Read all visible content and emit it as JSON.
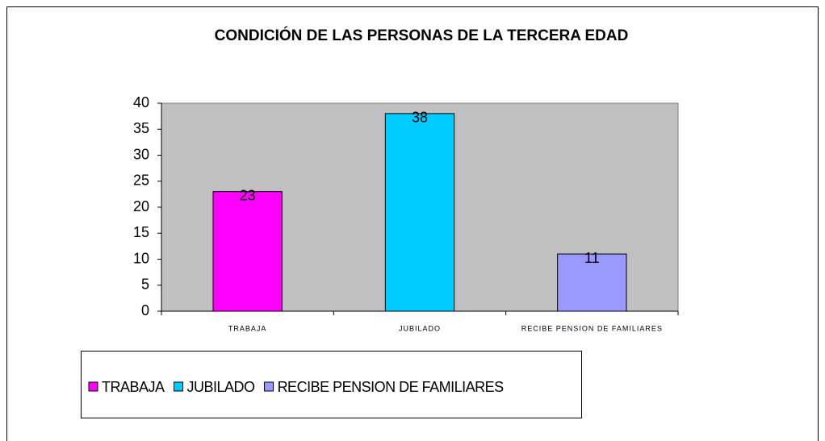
{
  "chart_data": {
    "type": "bar",
    "title": "CONDICIÓN DE LAS PERSONAS DE LA TERCERA EDAD",
    "categories": [
      "TRABAJA",
      "JUBILADO",
      "RECIBE PENSION DE FAMILIARES"
    ],
    "values": [
      23,
      38,
      11
    ],
    "colors": [
      "#ff00ff",
      "#00ccff",
      "#9999ff"
    ],
    "ylim": [
      0,
      40
    ],
    "yticks": [
      0,
      5,
      10,
      15,
      20,
      25,
      30,
      35,
      40
    ],
    "grid": false,
    "data_labels": true,
    "legend": "bottom"
  }
}
